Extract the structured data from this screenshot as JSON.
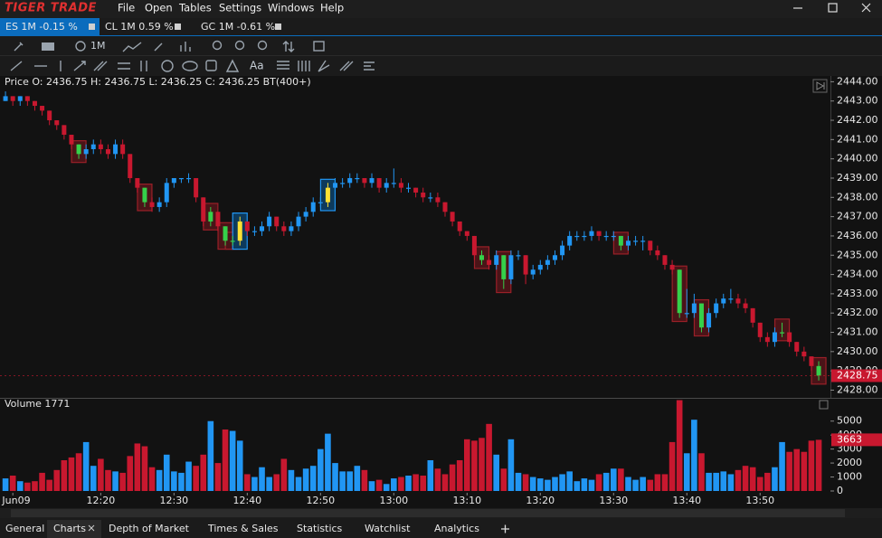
{
  "window": {
    "logo": "TIGER TRADE",
    "menu": [
      "File",
      "Open",
      "Tables",
      "Settings",
      "Windows",
      "Help"
    ]
  },
  "tabs": [
    "ES 1M -0.15 %",
    "CL 1M 0.59 %",
    "GC 1M -0.61 %"
  ],
  "toolbar": [
    "1M",
    "Aa"
  ],
  "bottom_tabs": [
    "General",
    "Charts",
    "Depth of Market",
    "Times & Sales",
    "Statistics",
    "Watchlist",
    "Analytics"
  ],
  "chart_data": {
    "type": "candlestick",
    "info": "Price O: 2436.75 H: 2436.75 L: 2436.25 C: 2436.25 BT(400+)",
    "up_color": "#2196f3",
    "down_color": "#c8182f",
    "xlim": [
      -0.75,
      112.6
    ],
    "xticks": [
      {
        "value": 1,
        "label": "Jun09"
      },
      {
        "value": 13,
        "label": "12:20"
      },
      {
        "value": 23,
        "label": "12:30"
      },
      {
        "value": 33,
        "label": "12:40"
      },
      {
        "value": 43,
        "label": "12:50"
      },
      {
        "value": 53,
        "label": "13:00"
      },
      {
        "value": 63,
        "label": "13:10"
      },
      {
        "value": 73,
        "label": "13:20"
      },
      {
        "value": 83,
        "label": "13:30"
      },
      {
        "value": 93,
        "label": "13:40"
      },
      {
        "value": 103,
        "label": "13:50"
      }
    ],
    "ylim": [
      2427.6,
      2444.3
    ],
    "yticks": [
      {
        "value": 2444,
        "label": "2444.00"
      },
      {
        "value": 2443,
        "label": "2443.00"
      },
      {
        "value": 2442,
        "label": "2442.00"
      },
      {
        "value": 2441,
        "label": "2441.00"
      },
      {
        "value": 2440,
        "label": "2440.00"
      },
      {
        "value": 2439,
        "label": "2439.00"
      },
      {
        "value": 2438,
        "label": "2438.00"
      },
      {
        "value": 2437,
        "label": "2437.00"
      },
      {
        "value": 2436,
        "label": "2436.00"
      },
      {
        "value": 2435,
        "label": "2435.00"
      },
      {
        "value": 2434,
        "label": "2434.00"
      },
      {
        "value": 2433,
        "label": "2433.00"
      },
      {
        "value": 2432,
        "label": "2432.00"
      },
      {
        "value": 2431,
        "label": "2431.00"
      },
      {
        "value": 2430,
        "label": "2430.00"
      },
      {
        "value": 2429,
        "label": "2429.00"
      },
      {
        "value": 2428,
        "label": "2428.00"
      }
    ],
    "last": {
      "value": 2428.75,
      "label": "2428.75"
    },
    "candles": [
      [
        2443,
        2443.5,
        2443,
        2443.25
      ],
      [
        2443.25,
        2443.25,
        2442.75,
        2443
      ],
      [
        2443,
        2443.25,
        2442.75,
        2443.25
      ],
      [
        2443.25,
        2443.25,
        2442.75,
        2443
      ],
      [
        2443,
        2443,
        2442.5,
        2442.75
      ],
      [
        2442.75,
        2442.75,
        2442.25,
        2442.5
      ],
      [
        2442.5,
        2442.5,
        2441.75,
        2442
      ],
      [
        2442,
        2442,
        2441.5,
        2441.75
      ],
      [
        2441.75,
        2441.75,
        2441,
        2441.25
      ],
      [
        2441.25,
        2441.25,
        2440.5,
        2440.75
      ],
      [
        2440.75,
        2440.75,
        2440,
        2440.25
      ],
      [
        2440.25,
        2440.75,
        2440,
        2440.5
      ],
      [
        2440.5,
        2441,
        2440.25,
        2440.75
      ],
      [
        2440.75,
        2441,
        2440.25,
        2440.5
      ],
      [
        2440.5,
        2440.75,
        2440,
        2440.25
      ],
      [
        2440.25,
        2441,
        2440,
        2440.75
      ],
      [
        2440.75,
        2441,
        2440,
        2440.25
      ],
      [
        2440.25,
        2440.25,
        2438.75,
        2439
      ],
      [
        2439,
        2439,
        2438.25,
        2438.5
      ],
      [
        2438.5,
        2438.5,
        2437.5,
        2437.75
      ],
      [
        2437.75,
        2438,
        2437.25,
        2437.5
      ],
      [
        2437.5,
        2438,
        2437.25,
        2437.75
      ],
      [
        2437.75,
        2439,
        2437.5,
        2438.75
      ],
      [
        2438.75,
        2439,
        2438.5,
        2439
      ],
      [
        2439,
        2439,
        2438.75,
        2439
      ],
      [
        2439,
        2439.25,
        2438.75,
        2439
      ],
      [
        2439,
        2439,
        2437.75,
        2438
      ],
      [
        2438,
        2438,
        2436.5,
        2436.75
      ],
      [
        2436.75,
        2437.5,
        2436.5,
        2437.25
      ],
      [
        2437.25,
        2437.25,
        2436.25,
        2436.5
      ],
      [
        2436.5,
        2436.5,
        2435.5,
        2435.75
      ],
      [
        2435.75,
        2436,
        2435.5,
        2435.75
      ],
      [
        2435.75,
        2437,
        2435.5,
        2436.75
      ],
      [
        2436.75,
        2436.75,
        2436,
        2436.25
      ],
      [
        2436.25,
        2436.5,
        2436,
        2436.25
      ],
      [
        2436.25,
        2436.75,
        2436,
        2436.5
      ],
      [
        2436.5,
        2437.25,
        2436.25,
        2437
      ],
      [
        2437,
        2437,
        2436.25,
        2436.5
      ],
      [
        2436.5,
        2436.75,
        2436,
        2436.25
      ],
      [
        2436.25,
        2436.75,
        2436,
        2436.5
      ],
      [
        2436.5,
        2437.25,
        2436.25,
        2437
      ],
      [
        2437,
        2437.5,
        2436.75,
        2437.25
      ],
      [
        2437.25,
        2438,
        2437,
        2437.75
      ],
      [
        2437.75,
        2438,
        2437.5,
        2437.75
      ],
      [
        2437.75,
        2438.75,
        2437.5,
        2438.5
      ],
      [
        2438.5,
        2439,
        2438.25,
        2438.75
      ],
      [
        2438.75,
        2439,
        2438.5,
        2438.75
      ],
      [
        2438.75,
        2439.25,
        2438.5,
        2439
      ],
      [
        2439,
        2439.25,
        2438.75,
        2439
      ],
      [
        2439,
        2439,
        2438.5,
        2438.75
      ],
      [
        2438.75,
        2439.25,
        2438.5,
        2439
      ],
      [
        2439,
        2439,
        2438.25,
        2438.5
      ],
      [
        2438.5,
        2439,
        2438.25,
        2438.75
      ],
      [
        2438.75,
        2439.5,
        2438.5,
        2438.75
      ],
      [
        2438.75,
        2439,
        2438.25,
        2438.5
      ],
      [
        2438.5,
        2438.75,
        2438.25,
        2438.5
      ],
      [
        2438.5,
        2438.5,
        2438,
        2438.25
      ],
      [
        2438.25,
        2438.5,
        2437.75,
        2438
      ],
      [
        2438,
        2438.25,
        2437.75,
        2438
      ],
      [
        2438,
        2438.25,
        2437.5,
        2437.75
      ],
      [
        2437.75,
        2437.75,
        2437,
        2437.25
      ],
      [
        2437.25,
        2437.25,
        2436.5,
        2436.75
      ],
      [
        2436.75,
        2436.75,
        2436,
        2436.25
      ],
      [
        2436.25,
        2436.25,
        2435.75,
        2436
      ],
      [
        2436,
        2436,
        2434.75,
        2435
      ],
      [
        2435,
        2435.25,
        2434.5,
        2434.75
      ],
      [
        2434.75,
        2435,
        2434.25,
        2434.5
      ],
      [
        2434.5,
        2435.25,
        2434.25,
        2435
      ],
      [
        2435,
        2435,
        2433.25,
        2433.75
      ],
      [
        2433.75,
        2435.25,
        2433.5,
        2435
      ],
      [
        2435,
        2435.25,
        2434.75,
        2435
      ],
      [
        2435,
        2435,
        2433.5,
        2434
      ],
      [
        2434,
        2434.5,
        2433.75,
        2434.25
      ],
      [
        2434.25,
        2434.75,
        2434,
        2434.5
      ],
      [
        2434.5,
        2435,
        2434.25,
        2434.75
      ],
      [
        2434.75,
        2435.25,
        2434.5,
        2435
      ],
      [
        2435,
        2435.75,
        2434.75,
        2435.5
      ],
      [
        2435.5,
        2436.25,
        2435.25,
        2436
      ],
      [
        2436,
        2436.25,
        2435.75,
        2436
      ],
      [
        2436,
        2436.25,
        2435.75,
        2436
      ],
      [
        2436,
        2436.5,
        2435.75,
        2436.25
      ],
      [
        2436.25,
        2436.25,
        2435.75,
        2436
      ],
      [
        2436,
        2436.25,
        2435.75,
        2436
      ],
      [
        2436,
        2436.25,
        2435.75,
        2436
      ],
      [
        2436,
        2436,
        2435.25,
        2435.5
      ],
      [
        2435.5,
        2436,
        2435.25,
        2435.75
      ],
      [
        2435.75,
        2436,
        2435.5,
        2435.75
      ],
      [
        2435.75,
        2436,
        2435.25,
        2435.75
      ],
      [
        2435.75,
        2435.75,
        2435,
        2435.25
      ],
      [
        2435.25,
        2435.5,
        2434.75,
        2435
      ],
      [
        2435,
        2435,
        2434.25,
        2434.5
      ],
      [
        2434.5,
        2434.75,
        2434,
        2434.25
      ],
      [
        2434.25,
        2434.25,
        2431.75,
        2432
      ],
      [
        2432,
        2433.25,
        2431.75,
        2432
      ],
      [
        2432,
        2433,
        2431.75,
        2432.5
      ],
      [
        2432.5,
        2432.5,
        2431,
        2431.25
      ],
      [
        2431.25,
        2432.25,
        2431,
        2432
      ],
      [
        2432,
        2432.75,
        2431.75,
        2432.5
      ],
      [
        2432.5,
        2433,
        2432.25,
        2432.75
      ],
      [
        2432.75,
        2433.25,
        2432.5,
        2432.75
      ],
      [
        2432.75,
        2433,
        2432.25,
        2432.5
      ],
      [
        2432.5,
        2432.75,
        2432,
        2432.25
      ],
      [
        2432.25,
        2432.25,
        2431.25,
        2431.5
      ],
      [
        2431.5,
        2431.5,
        2430.5,
        2430.75
      ],
      [
        2430.75,
        2431,
        2430.25,
        2430.5
      ],
      [
        2430.5,
        2431.25,
        2430.25,
        2431
      ],
      [
        2431,
        2431.5,
        2430.75,
        2431
      ],
      [
        2431,
        2431,
        2430.25,
        2430.5
      ],
      [
        2430.5,
        2430.5,
        2429.75,
        2430
      ],
      [
        2430,
        2430.25,
        2429.5,
        2429.75
      ],
      [
        2429.75,
        2429.75,
        2429,
        2429.25
      ],
      [
        2429.25,
        2429.5,
        2428.5,
        2428.75
      ]
    ],
    "signals": [
      {
        "index": 10,
        "color": "#35d04a"
      },
      {
        "index": 19,
        "color": "#35d04a"
      },
      {
        "index": 28,
        "color": "#35d04a"
      },
      {
        "index": 30,
        "color": "#35d04a"
      },
      {
        "index": 31,
        "color": "#35d04a"
      },
      {
        "index": 32,
        "color": "#ffe033"
      },
      {
        "index": 44,
        "color": "#ffe033"
      },
      {
        "index": 65,
        "color": "#35d04a"
      },
      {
        "index": 68,
        "color": "#35d04a"
      },
      {
        "index": 84,
        "color": "#35d04a"
      },
      {
        "index": 92,
        "color": "#35d04a"
      },
      {
        "index": 95,
        "color": "#35d04a"
      },
      {
        "index": 106,
        "color": "#35d04a"
      },
      {
        "index": 111,
        "color": "#35d04a"
      }
    ],
    "volume": {
      "title": "Volume 1771",
      "ylim": [
        0,
        6600
      ],
      "yticks": [
        0,
        1000,
        2000,
        3000,
        4000,
        5000
      ],
      "last": 3663,
      "values": [
        900,
        1100,
        700,
        600,
        700,
        1300,
        800,
        1500,
        2200,
        2400,
        2700,
        3500,
        1800,
        2300,
        1500,
        1400,
        1300,
        2500,
        3400,
        3200,
        1700,
        1500,
        2600,
        1400,
        1300,
        2100,
        1800,
        2600,
        5000,
        2000,
        4400,
        4300,
        3600,
        1200,
        1000,
        1700,
        1000,
        1200,
        2300,
        1500,
        1000,
        1600,
        1800,
        3000,
        4100,
        2000,
        1400,
        1400,
        1800,
        1500,
        700,
        800,
        500,
        900,
        1000,
        1100,
        1200,
        1100,
        2200,
        1600,
        1200,
        1900,
        2200,
        3700,
        3600,
        3800,
        4800,
        2600,
        1600,
        3700,
        1300,
        1200,
        1000,
        900,
        800,
        1000,
        1200,
        1400,
        700,
        900,
        800,
        1200,
        1300,
        1600,
        1600,
        1000,
        800,
        1000,
        800,
        1200,
        1200,
        3500,
        6500,
        2700,
        5100,
        2700,
        1300,
        1300,
        1400,
        1200,
        1500,
        1800,
        1700,
        1000,
        1300,
        1700,
        3500,
        2800,
        3000,
        2800,
        3600,
        3663
      ]
    }
  }
}
